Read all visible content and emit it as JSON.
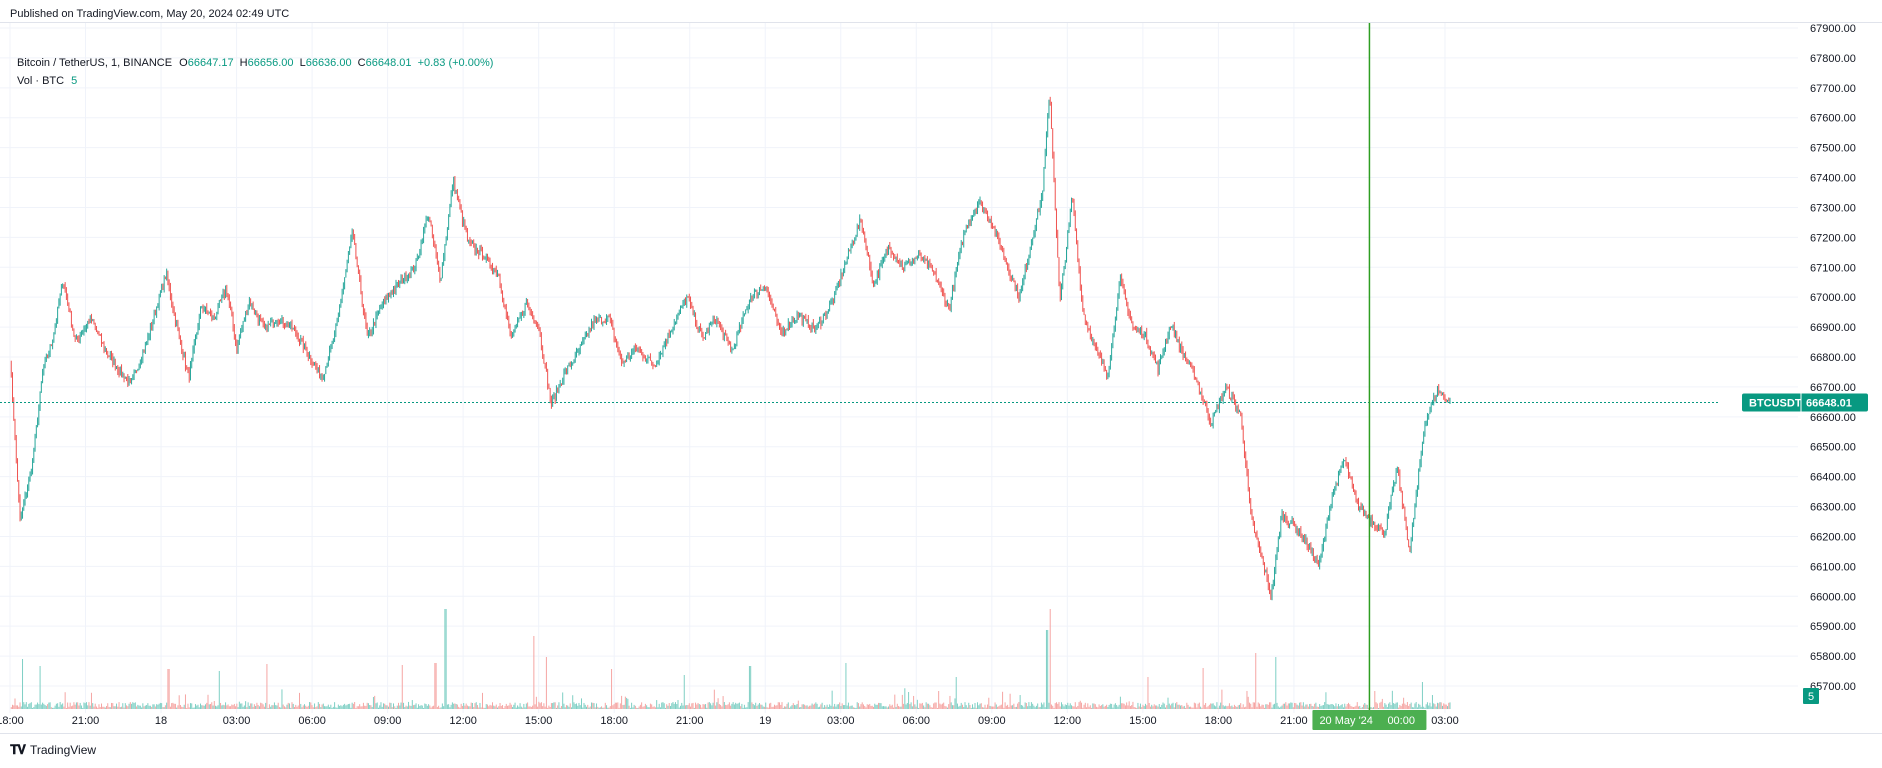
{
  "header": {
    "published": "Published on TradingView.com, May 20, 2024 02:49 UTC"
  },
  "legend": {
    "symbol": "Bitcoin / TetherUS, 1, BINANCE",
    "o_label": "O",
    "o_value": "66647.17",
    "h_label": "H",
    "h_value": "66656.00",
    "l_label": "L",
    "l_value": "66636.00",
    "c_label": "C",
    "c_value": "66648.01",
    "change": "+0.83 (+0.00%)",
    "volume_label": "Vol · BTC",
    "volume_value": "5"
  },
  "colors": {
    "up": "#26a69a",
    "down": "#ef5350",
    "vol_up": "#7ecfc4",
    "vol_down": "#f5a5a3",
    "last_price_tag": "#089981",
    "crosshair": "#2e9e22",
    "grid": "#f0f3fa"
  },
  "price_tag": {
    "symbol": "BTCUSDT",
    "value": "66648.01"
  },
  "volume_tag": {
    "value": "5"
  },
  "crosshair_label": {
    "date": "20 May '24",
    "time": "00:00"
  },
  "footer": {
    "brand": "TradingView",
    "logo_icon": "tradingview-logo-icon"
  },
  "chart_data": {
    "type": "candlestick",
    "title": "Bitcoin / TetherUS, 1, BINANCE",
    "ylim": [
      65700,
      67900
    ],
    "y_ticks": [
      "67900.00",
      "67800.00",
      "67700.00",
      "67600.00",
      "67500.00",
      "67400.00",
      "67300.00",
      "67200.00",
      "67100.00",
      "67000.00",
      "66900.00",
      "66800.00",
      "66700.00",
      "66600.00",
      "66500.00",
      "66400.00",
      "66300.00",
      "66200.00",
      "66100.00",
      "66000.00",
      "65900.00",
      "65800.00",
      "65700.00"
    ],
    "x_ticks": [
      "18:00",
      "21:00",
      "18",
      "03:00",
      "06:00",
      "09:00",
      "12:00",
      "15:00",
      "18:00",
      "21:00",
      "19",
      "03:00",
      "06:00",
      "09:00",
      "12:00",
      "15:00",
      "18:00",
      "21:00",
      "03:00"
    ],
    "x_tick_hours": [
      0,
      3,
      6,
      9,
      12,
      15,
      18,
      21,
      24,
      27,
      30,
      33,
      36,
      39,
      42,
      45,
      48,
      51,
      57
    ],
    "x_range_hours": [
      0,
      57.2
    ],
    "crosshair_hours": 54,
    "last_price": 66648.01,
    "price_path": [
      [
        0,
        66800
      ],
      [
        0.4,
        66250
      ],
      [
        0.9,
        66450
      ],
      [
        1.3,
        66750
      ],
      [
        1.7,
        66860
      ],
      [
        2.1,
        67060
      ],
      [
        2.6,
        66850
      ],
      [
        3.2,
        66930
      ],
      [
        3.8,
        66820
      ],
      [
        4.3,
        66760
      ],
      [
        4.8,
        66710
      ],
      [
        5.4,
        66840
      ],
      [
        5.9,
        66990
      ],
      [
        6.2,
        67080
      ],
      [
        6.6,
        66910
      ],
      [
        7.1,
        66730
      ],
      [
        7.6,
        66970
      ],
      [
        8.1,
        66930
      ],
      [
        8.6,
        67030
      ],
      [
        9.0,
        66830
      ],
      [
        9.5,
        66990
      ],
      [
        10.1,
        66890
      ],
      [
        10.6,
        66930
      ],
      [
        11.2,
        66900
      ],
      [
        11.7,
        66830
      ],
      [
        12.4,
        66730
      ],
      [
        12.9,
        66870
      ],
      [
        13.6,
        67220
      ],
      [
        14.2,
        66860
      ],
      [
        14.8,
        66980
      ],
      [
        15.5,
        67050
      ],
      [
        16.1,
        67100
      ],
      [
        16.6,
        67280
      ],
      [
        17.1,
        67060
      ],
      [
        17.6,
        67390
      ],
      [
        18.2,
        67180
      ],
      [
        18.8,
        67140
      ],
      [
        19.4,
        67080
      ],
      [
        19.9,
        66860
      ],
      [
        20.5,
        66980
      ],
      [
        21.0,
        66900
      ],
      [
        21.5,
        66640
      ],
      [
        22.0,
        66740
      ],
      [
        22.6,
        66820
      ],
      [
        23.2,
        66920
      ],
      [
        23.8,
        66930
      ],
      [
        24.3,
        66780
      ],
      [
        24.9,
        66830
      ],
      [
        25.6,
        66770
      ],
      [
        26.3,
        66900
      ],
      [
        26.9,
        67000
      ],
      [
        27.5,
        66860
      ],
      [
        28.0,
        66930
      ],
      [
        28.7,
        66820
      ],
      [
        29.4,
        67000
      ],
      [
        30.0,
        67040
      ],
      [
        30.6,
        66880
      ],
      [
        31.3,
        66940
      ],
      [
        32.0,
        66890
      ],
      [
        32.7,
        66990
      ],
      [
        33.2,
        67120
      ],
      [
        33.8,
        67260
      ],
      [
        34.3,
        67040
      ],
      [
        34.9,
        67170
      ],
      [
        35.5,
        67100
      ],
      [
        36.1,
        67140
      ],
      [
        36.7,
        67080
      ],
      [
        37.3,
        66960
      ],
      [
        37.9,
        67220
      ],
      [
        38.5,
        67320
      ],
      [
        39.0,
        67250
      ],
      [
        39.6,
        67110
      ],
      [
        40.1,
        67000
      ],
      [
        40.6,
        67200
      ],
      [
        41.0,
        67340
      ],
      [
        41.3,
        67690
      ],
      [
        41.7,
        66980
      ],
      [
        42.2,
        67340
      ],
      [
        42.6,
        66960
      ],
      [
        43.1,
        66830
      ],
      [
        43.6,
        66740
      ],
      [
        44.1,
        67060
      ],
      [
        44.6,
        66900
      ],
      [
        45.1,
        66870
      ],
      [
        45.6,
        66760
      ],
      [
        46.1,
        66910
      ],
      [
        46.6,
        66810
      ],
      [
        47.1,
        66730
      ],
      [
        47.7,
        66580
      ],
      [
        48.3,
        66700
      ],
      [
        48.9,
        66600
      ],
      [
        49.3,
        66260
      ],
      [
        49.8,
        66100
      ],
      [
        50.1,
        66000
      ],
      [
        50.5,
        66270
      ],
      [
        51.0,
        66240
      ],
      [
        51.5,
        66180
      ],
      [
        52.0,
        66100
      ],
      [
        52.5,
        66330
      ],
      [
        53.0,
        66460
      ],
      [
        53.5,
        66310
      ],
      [
        54.0,
        66260
      ],
      [
        54.6,
        66210
      ],
      [
        55.1,
        66430
      ],
      [
        55.6,
        66150
      ],
      [
        56.2,
        66580
      ],
      [
        56.7,
        66690
      ],
      [
        57.2,
        66648
      ]
    ],
    "volume_spikes": [
      [
        0.5,
        50
      ],
      [
        1.2,
        43
      ],
      [
        6.3,
        40
      ],
      [
        8.3,
        38
      ],
      [
        10.2,
        45
      ],
      [
        15.6,
        44
      ],
      [
        16.9,
        46
      ],
      [
        17.3,
        100
      ],
      [
        20.8,
        73
      ],
      [
        21.3,
        52
      ],
      [
        23.9,
        40
      ],
      [
        26.8,
        34
      ],
      [
        29.4,
        43
      ],
      [
        33.2,
        46
      ],
      [
        37.6,
        32
      ],
      [
        41.2,
        79
      ],
      [
        41.3,
        100
      ],
      [
        45.2,
        32
      ],
      [
        47.4,
        41
      ],
      [
        49.5,
        56
      ],
      [
        50.3,
        52
      ],
      [
        54.2,
        18
      ],
      [
        56.1,
        27
      ]
    ]
  }
}
